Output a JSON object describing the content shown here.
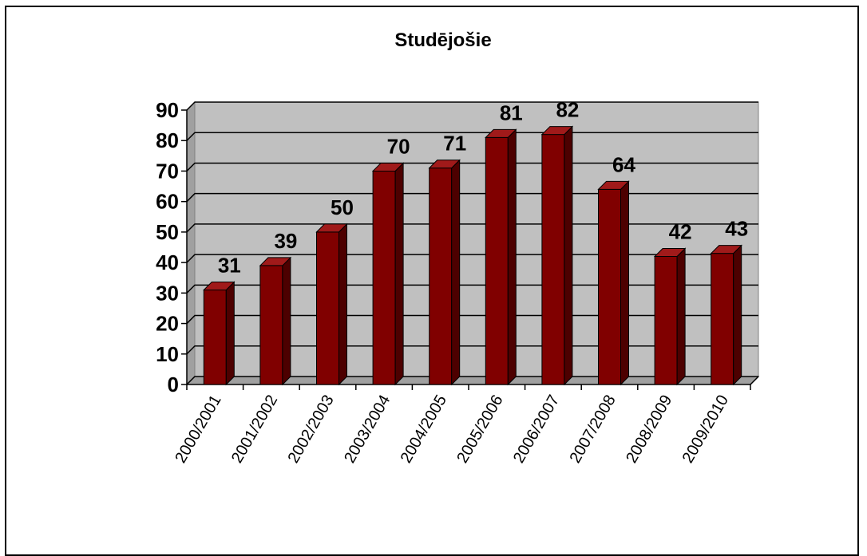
{
  "chart_data": {
    "type": "bar",
    "title": "Studējošie",
    "xlabel": "",
    "ylabel": "",
    "categories": [
      "2000/2001",
      "2001/2002",
      "2002/2003",
      "2003/2004",
      "2004/2005",
      "2005/2006",
      "2006/2007",
      "2007/2008",
      "2008/2009",
      "2009/2010"
    ],
    "values": [
      31,
      39,
      50,
      70,
      71,
      81,
      82,
      64,
      42,
      43
    ],
    "ylim": [
      0,
      90
    ],
    "yticks": [
      0,
      10,
      20,
      30,
      40,
      50,
      60,
      70,
      80,
      90
    ],
    "grid": true,
    "legend": "none",
    "style": "3d-column"
  },
  "colors": {
    "bar_front": "#800000",
    "bar_side": "#4d0000",
    "bar_top": "#a01a1a",
    "plot_wall": "#c0c0c0",
    "floor": "#a0a0a0",
    "grid": "#000000"
  }
}
